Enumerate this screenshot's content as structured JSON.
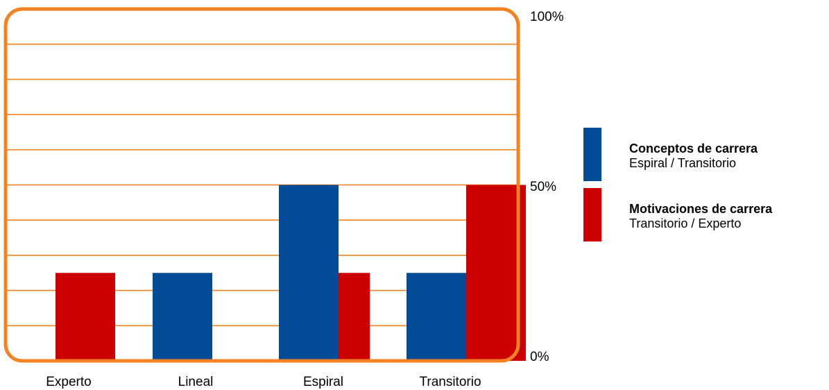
{
  "chart_data": {
    "type": "bar",
    "categories": [
      "Experto",
      "Lineal",
      "Espiral",
      "Transitorio"
    ],
    "series": [
      {
        "name": "Conceptos de carrera",
        "values": [
          0,
          25,
          50,
          25
        ],
        "color": "#024b96"
      },
      {
        "name": "Motivaciones de carrera",
        "values": [
          25,
          0,
          25,
          50
        ],
        "color": "#cc0000"
      }
    ],
    "ylim": [
      0,
      100
    ],
    "y_ticks": [
      "0%",
      "50%",
      "100%"
    ],
    "grid": true,
    "frame_color": "#f58220",
    "legend": {
      "placement": "right",
      "items": [
        {
          "title": "Conceptos de carrera",
          "subtitle": "Espiral / Transitorio",
          "color": "#024b96"
        },
        {
          "title": "Motivaciones de carrera",
          "subtitle": "Transitorio / Experto",
          "color": "#cc0000"
        }
      ]
    }
  }
}
